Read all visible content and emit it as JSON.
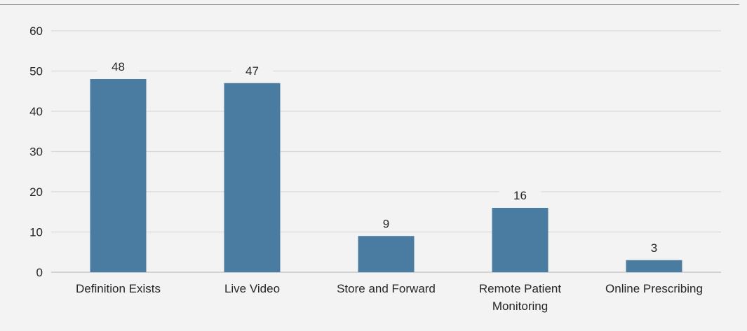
{
  "chart_data": {
    "type": "bar",
    "categories": [
      "Definition Exists",
      "Live Video",
      "Store and Forward",
      "Remote Patient Monitoring",
      "Online Prescribing"
    ],
    "category_lines": [
      [
        "Definition Exists"
      ],
      [
        "Live Video"
      ],
      [
        "Store and Forward"
      ],
      [
        "Remote Patient",
        "Monitoring"
      ],
      [
        "Online Prescribing"
      ]
    ],
    "values": [
      48,
      47,
      9,
      16,
      3
    ],
    "data_labels": [
      "48",
      "47",
      "9",
      "16",
      "3"
    ],
    "title": "",
    "xlabel": "",
    "ylabel": "",
    "ylim": [
      0,
      60
    ],
    "yticks": [
      0,
      10,
      20,
      30,
      40,
      50,
      60
    ],
    "ytick_labels": [
      "0",
      "10",
      "20",
      "30",
      "40",
      "50",
      "60"
    ],
    "grid": true,
    "legend": "none",
    "colors": {
      "bar": "#4a7ba1",
      "grid": "#d9d9d9",
      "axis": "#bfbfbf",
      "text": "#262626",
      "background": "#f3f3f3"
    }
  }
}
